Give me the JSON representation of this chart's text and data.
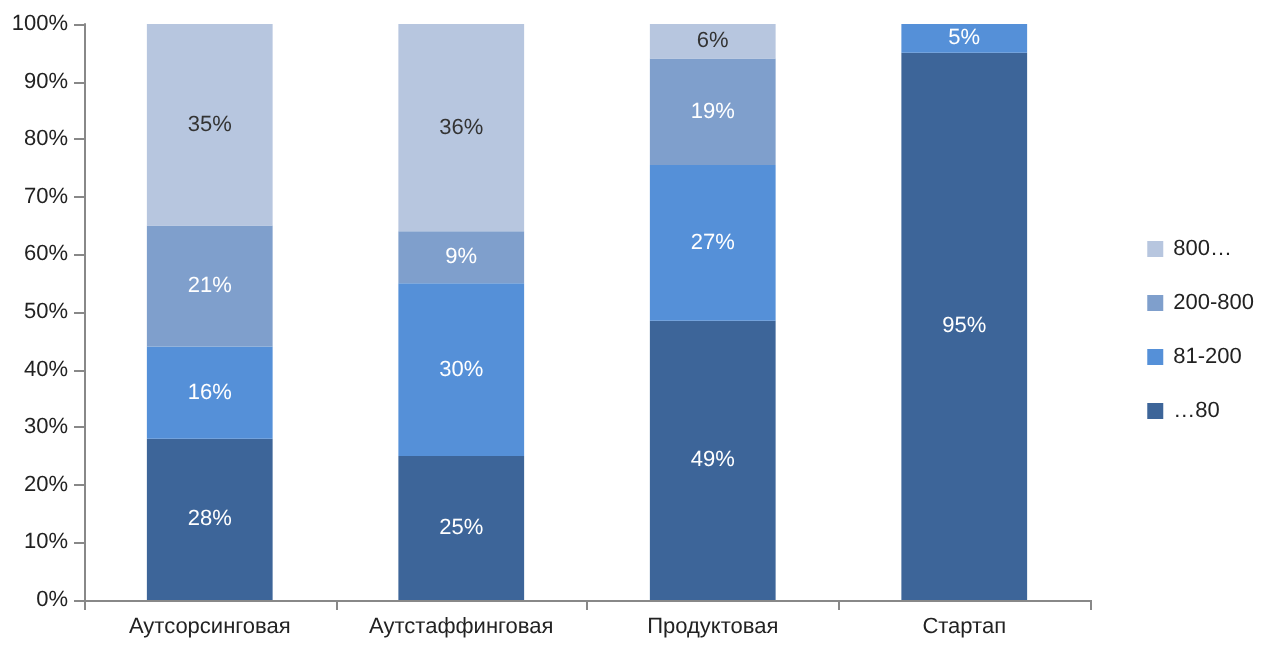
{
  "chart_data": {
    "type": "bar",
    "stacked": true,
    "categories": [
      "Аутсорсинговая",
      "Аутстаффинговая",
      "Продуктовая",
      "Стартап"
    ],
    "series": [
      {
        "name": "…80",
        "color": "#3d6599",
        "values": [
          28,
          25,
          48.5,
          95
        ],
        "value_labels": [
          "28%",
          "25%",
          "49%",
          "95%"
        ]
      },
      {
        "name": "81-200",
        "color": "#5590d8",
        "values": [
          16,
          30,
          27,
          5
        ],
        "value_labels": [
          "16%",
          "30%",
          "27%",
          "5%"
        ]
      },
      {
        "name": "200-800",
        "color": "#7f9fcc",
        "values": [
          21,
          9,
          18.5,
          null
        ],
        "value_labels": [
          "21%",
          "9%",
          "19%",
          null
        ]
      },
      {
        "name": "800…",
        "color": "#b7c6df",
        "values": [
          35,
          36,
          6,
          null
        ],
        "value_labels": [
          "35%",
          "36%",
          "6%",
          null
        ]
      }
    ],
    "ylim": [
      0,
      100
    ],
    "yticks": [
      {
        "value": 0,
        "label": "0%"
      },
      {
        "value": 10,
        "label": "10%"
      },
      {
        "value": 20,
        "label": "20%"
      },
      {
        "value": 30,
        "label": "30%"
      },
      {
        "value": 40,
        "label": "40%"
      },
      {
        "value": 50,
        "label": "50%"
      },
      {
        "value": 60,
        "label": "60%"
      },
      {
        "value": 70,
        "label": "70%"
      },
      {
        "value": 80,
        "label": "80%"
      },
      {
        "value": 90,
        "label": "90%"
      },
      {
        "value": 100,
        "label": "100%"
      }
    ],
    "grid": false,
    "legend": "right"
  }
}
